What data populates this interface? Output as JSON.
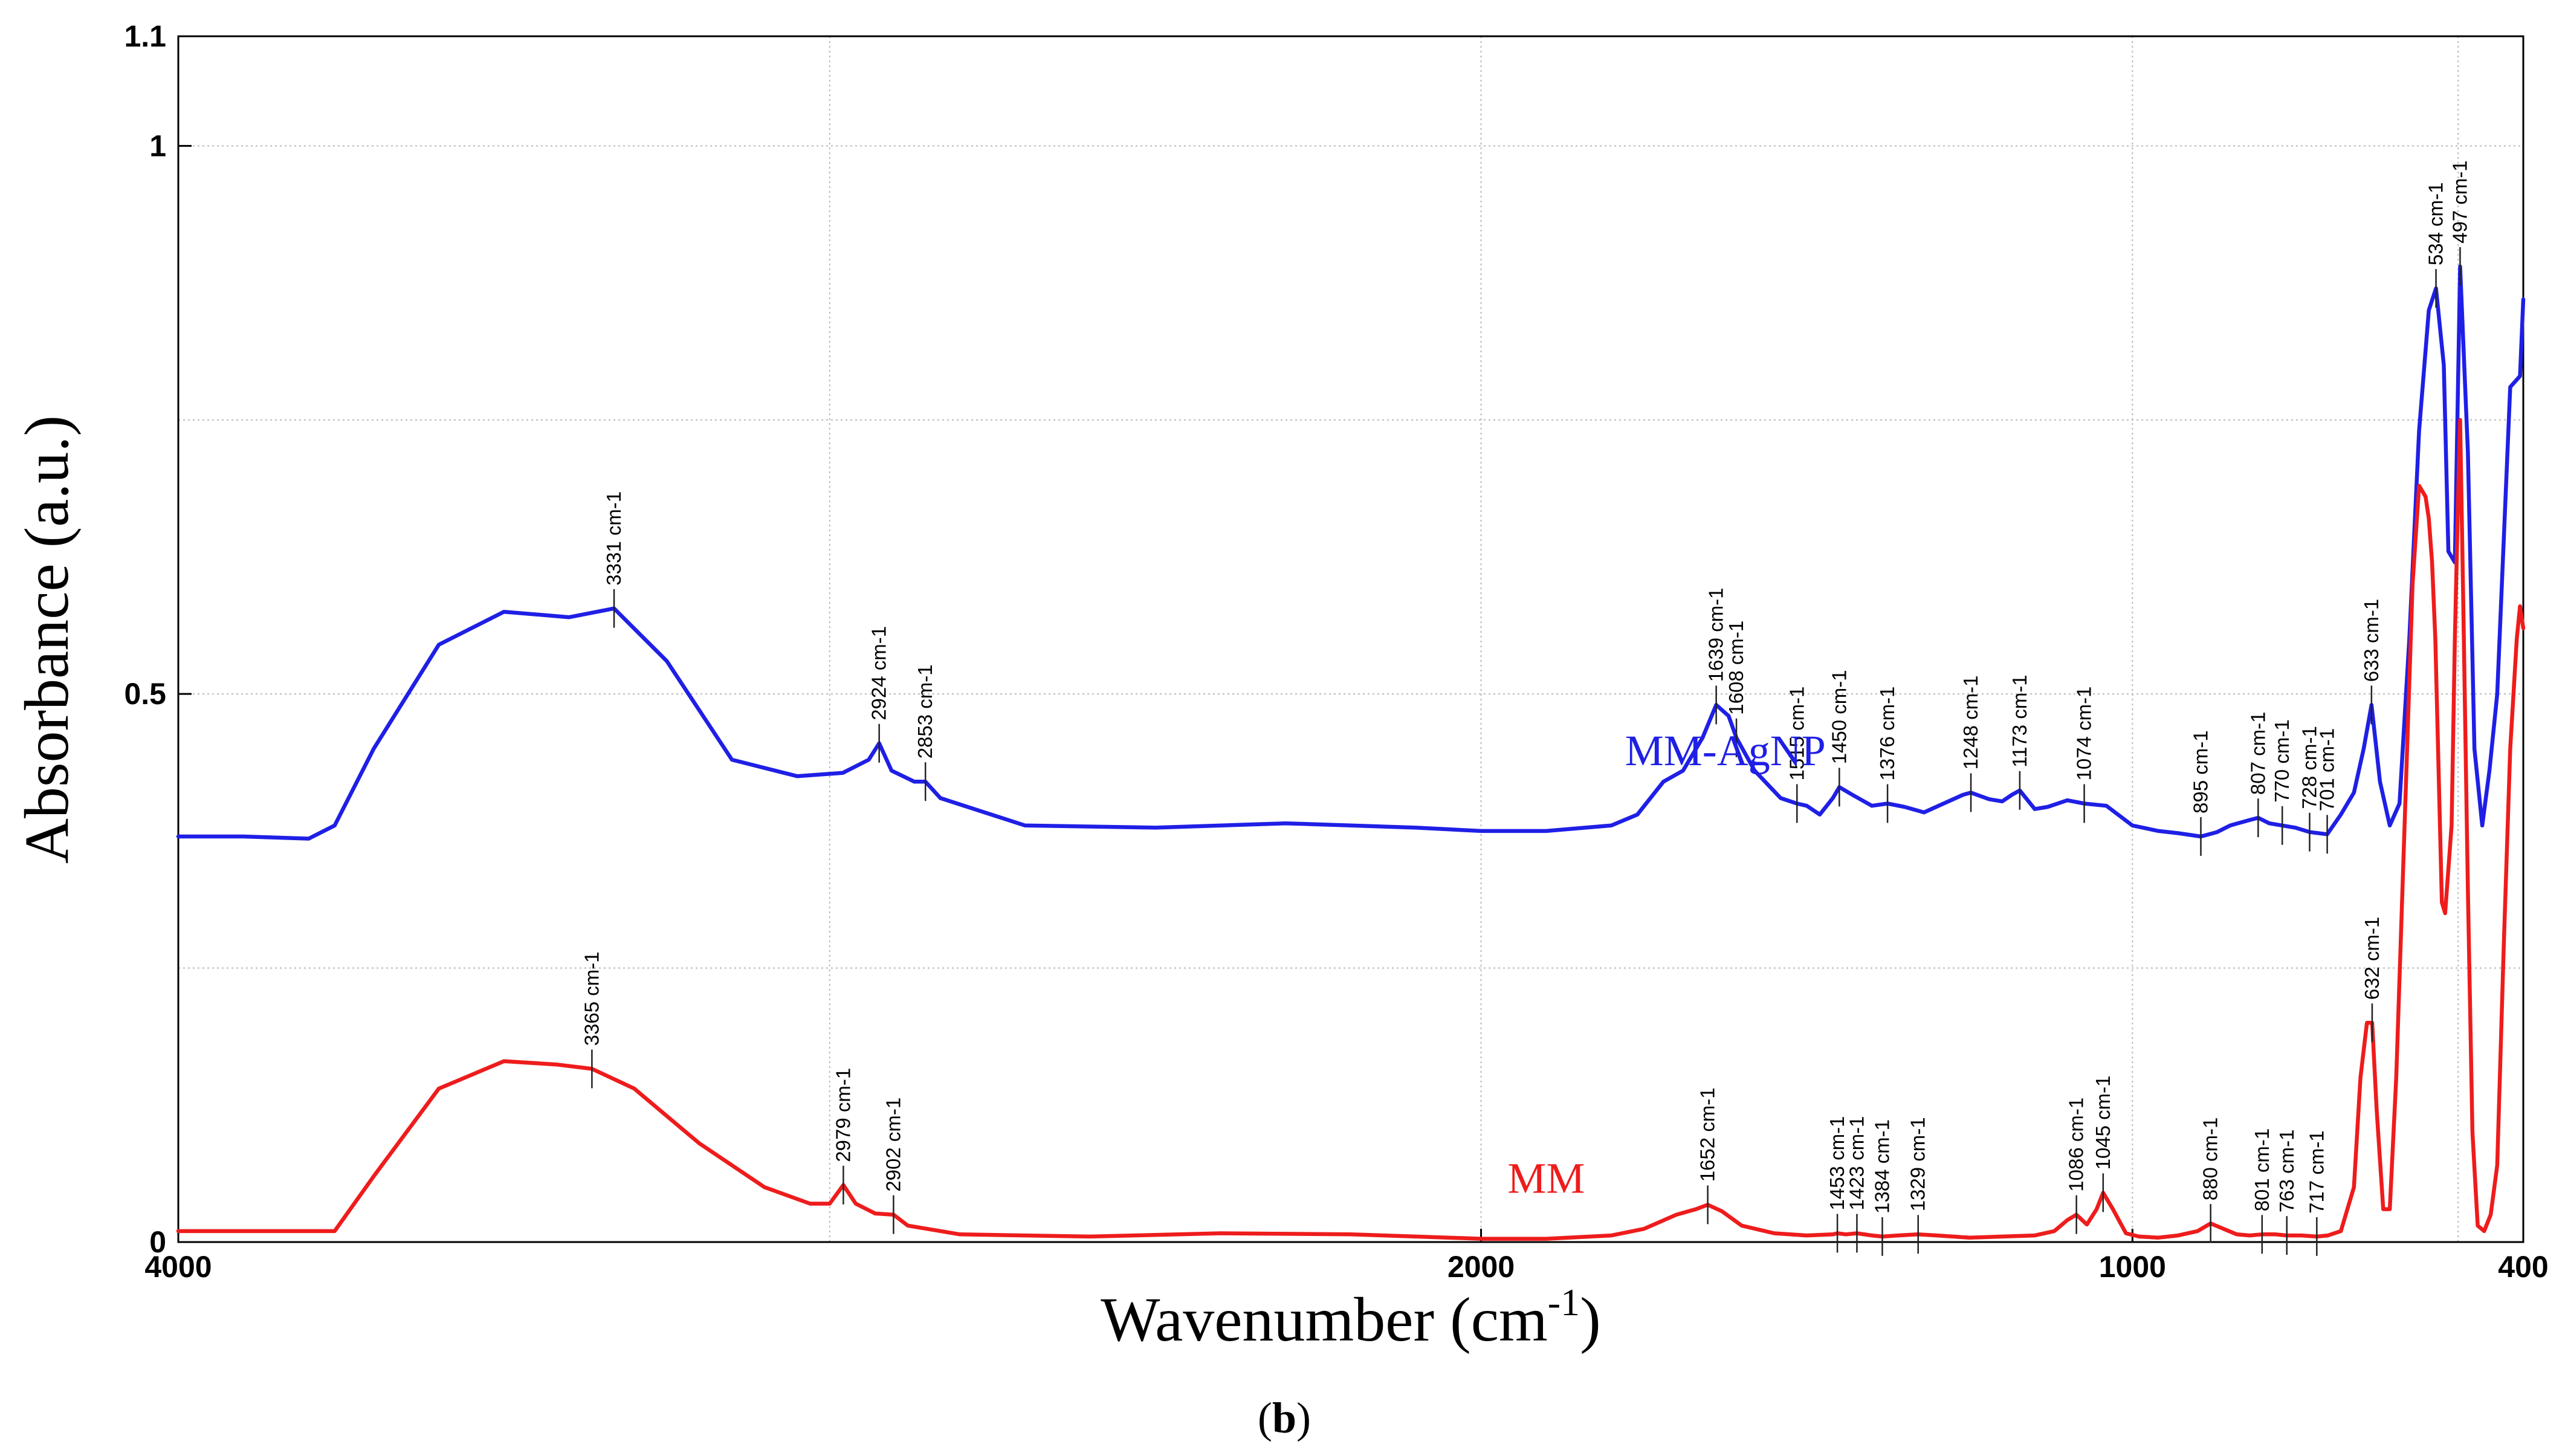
{
  "chart_data": {
    "type": "line",
    "title": "",
    "xlabel": "Wavenumber (cm",
    "xlabel_sup": "-1",
    "xlabel_close": ")",
    "ylabel": "Absorbance (a.u.)",
    "xlim": [
      4000,
      400
    ],
    "ylim": [
      0,
      1.1
    ],
    "x_ticks": [
      {
        "value": 4000,
        "label": "4000"
      },
      {
        "value": 2000,
        "label": "2000"
      },
      {
        "value": 1000,
        "label": "1000"
      },
      {
        "value": 400,
        "label": "400"
      }
    ],
    "y_ticks": [
      {
        "value": 0,
        "label": "0"
      },
      {
        "value": 0.5,
        "label": "0.5"
      },
      {
        "value": 1,
        "label": "1"
      },
      {
        "value": 1.1,
        "label": "1.1"
      }
    ],
    "grid_x": [
      3000,
      2000,
      1000,
      500
    ],
    "grid_y": [
      0.25,
      0.5,
      0.75,
      1.0
    ],
    "grid": true,
    "panel_label": {
      "open": "(",
      "letter": "b",
      "close": ")"
    },
    "series": [
      {
        "name": "MM-AgNP",
        "color": "#1f1fe6",
        "x": [
          4000,
          3900,
          3800,
          3760,
          3700,
          3600,
          3500,
          3400,
          3331,
          3250,
          3150,
          3050,
          2980,
          2940,
          2924,
          2905,
          2870,
          2853,
          2830,
          2700,
          2500,
          2300,
          2200,
          2100,
          2000,
          1900,
          1800,
          1760,
          1720,
          1690,
          1660,
          1639,
          1620,
          1608,
          1580,
          1540,
          1515,
          1500,
          1480,
          1460,
          1450,
          1430,
          1400,
          1376,
          1350,
          1320,
          1290,
          1260,
          1248,
          1220,
          1200,
          1185,
          1173,
          1150,
          1130,
          1100,
          1074,
          1040,
          1000,
          960,
          930,
          895,
          870,
          850,
          820,
          807,
          790,
          770,
          750,
          728,
          701,
          680,
          660,
          645,
          633,
          620,
          605,
          590,
          575,
          560,
          545,
          534,
          522,
          515,
          505,
          497,
          485,
          475,
          463,
          452,
          440,
          420,
          405,
          400
        ],
        "values": [
          0.37,
          0.37,
          0.368,
          0.38,
          0.45,
          0.545,
          0.575,
          0.57,
          0.578,
          0.53,
          0.44,
          0.425,
          0.428,
          0.44,
          0.455,
          0.43,
          0.42,
          0.42,
          0.405,
          0.38,
          0.378,
          0.382,
          0.38,
          0.378,
          0.375,
          0.375,
          0.38,
          0.39,
          0.42,
          0.43,
          0.46,
          0.49,
          0.48,
          0.46,
          0.43,
          0.405,
          0.4,
          0.398,
          0.39,
          0.405,
          0.415,
          0.408,
          0.398,
          0.4,
          0.397,
          0.392,
          0.4,
          0.408,
          0.41,
          0.404,
          0.402,
          0.408,
          0.412,
          0.395,
          0.397,
          0.403,
          0.4,
          0.398,
          0.38,
          0.375,
          0.373,
          0.37,
          0.374,
          0.38,
          0.385,
          0.387,
          0.382,
          0.38,
          0.378,
          0.374,
          0.372,
          0.39,
          0.41,
          0.45,
          0.49,
          0.42,
          0.38,
          0.4,
          0.55,
          0.74,
          0.85,
          0.87,
          0.8,
          0.63,
          0.62,
          0.89,
          0.72,
          0.45,
          0.38,
          0.43,
          0.5,
          0.78,
          0.79,
          0.86
        ]
      },
      {
        "name": "MM",
        "color": "#ee1c1c",
        "x": [
          4000,
          3900,
          3800,
          3760,
          3700,
          3600,
          3500,
          3420,
          3365,
          3300,
          3200,
          3100,
          3030,
          3000,
          2979,
          2960,
          2930,
          2902,
          2880,
          2800,
          2600,
          2400,
          2200,
          2100,
          2000,
          1900,
          1800,
          1750,
          1700,
          1670,
          1652,
          1630,
          1600,
          1550,
          1500,
          1460,
          1453,
          1440,
          1423,
          1400,
          1384,
          1360,
          1329,
          1300,
          1250,
          1200,
          1150,
          1120,
          1100,
          1086,
          1070,
          1055,
          1045,
          1030,
          1010,
          990,
          960,
          930,
          900,
          880,
          860,
          840,
          820,
          801,
          780,
          763,
          740,
          717,
          700,
          680,
          660,
          650,
          640,
          632,
          625,
          615,
          605,
          595,
          580,
          570,
          560,
          550,
          545,
          540,
          535,
          530,
          525,
          520,
          510,
          505,
          500,
          497,
          492,
          485,
          478,
          470,
          460,
          450,
          440,
          430,
          420,
          410,
          405,
          400
        ],
        "values": [
          0.01,
          0.01,
          0.01,
          0.01,
          0.06,
          0.14,
          0.165,
          0.162,
          0.158,
          0.14,
          0.09,
          0.05,
          0.035,
          0.035,
          0.052,
          0.035,
          0.026,
          0.025,
          0.015,
          0.007,
          0.005,
          0.008,
          0.007,
          0.005,
          0.003,
          0.003,
          0.006,
          0.012,
          0.025,
          0.03,
          0.034,
          0.028,
          0.015,
          0.008,
          0.006,
          0.007,
          0.008,
          0.007,
          0.008,
          0.006,
          0.005,
          0.006,
          0.007,
          0.006,
          0.004,
          0.005,
          0.006,
          0.01,
          0.02,
          0.025,
          0.016,
          0.03,
          0.045,
          0.03,
          0.008,
          0.005,
          0.004,
          0.006,
          0.01,
          0.017,
          0.012,
          0.007,
          0.006,
          0.007,
          0.007,
          0.006,
          0.006,
          0.005,
          0.006,
          0.01,
          0.05,
          0.15,
          0.2,
          0.2,
          0.12,
          0.03,
          0.03,
          0.15,
          0.42,
          0.6,
          0.69,
          0.68,
          0.66,
          0.62,
          0.55,
          0.43,
          0.31,
          0.3,
          0.38,
          0.55,
          0.68,
          0.75,
          0.58,
          0.32,
          0.1,
          0.015,
          0.01,
          0.025,
          0.07,
          0.27,
          0.45,
          0.55,
          0.58,
          0.56
        ]
      }
    ],
    "series_labels": [
      {
        "series": 0,
        "text": "MM-AgNP",
        "x": 1625,
        "y": 0.435
      },
      {
        "series": 1,
        "text": "MM",
        "x": 1900,
        "y": 0.045
      }
    ],
    "peak_annotations": [
      {
        "series": 0,
        "x": 3331,
        "y": 0.578,
        "label": "3331 cm-1"
      },
      {
        "series": 0,
        "x": 2924,
        "y": 0.455,
        "label": "2924 cm-1"
      },
      {
        "series": 0,
        "x": 2853,
        "y": 0.42,
        "label": "2853 cm-1"
      },
      {
        "series": 0,
        "x": 1639,
        "y": 0.49,
        "label": "1639 cm-1"
      },
      {
        "series": 0,
        "x": 1608,
        "y": 0.46,
        "label": "1608 cm-1"
      },
      {
        "series": 0,
        "x": 1515,
        "y": 0.4,
        "label": "1515 cm-1"
      },
      {
        "series": 0,
        "x": 1450,
        "y": 0.415,
        "label": "1450 cm-1"
      },
      {
        "series": 0,
        "x": 1376,
        "y": 0.4,
        "label": "1376 cm-1"
      },
      {
        "series": 0,
        "x": 1248,
        "y": 0.41,
        "label": "1248 cm-1"
      },
      {
        "series": 0,
        "x": 1173,
        "y": 0.412,
        "label": "1173 cm-1"
      },
      {
        "series": 0,
        "x": 1074,
        "y": 0.4,
        "label": "1074 cm-1"
      },
      {
        "series": 0,
        "x": 895,
        "y": 0.37,
        "label": "895 cm-1"
      },
      {
        "series": 0,
        "x": 807,
        "y": 0.387,
        "label": "807 cm-1"
      },
      {
        "series": 0,
        "x": 770,
        "y": 0.38,
        "label": "770 cm-1"
      },
      {
        "series": 0,
        "x": 728,
        "y": 0.374,
        "label": "728 cm-1"
      },
      {
        "series": 0,
        "x": 701,
        "y": 0.372,
        "label": "701 cm-1"
      },
      {
        "series": 0,
        "x": 633,
        "y": 0.49,
        "label": "633 cm-1"
      },
      {
        "series": 0,
        "x": 534,
        "y": 0.87,
        "label": "534 cm-1"
      },
      {
        "series": 0,
        "x": 497,
        "y": 0.89,
        "label": "497 cm-1"
      },
      {
        "series": 1,
        "x": 3365,
        "y": 0.158,
        "label": "3365 cm-1"
      },
      {
        "series": 1,
        "x": 2979,
        "y": 0.052,
        "label": "2979 cm-1"
      },
      {
        "series": 1,
        "x": 2902,
        "y": 0.025,
        "label": "2902 cm-1"
      },
      {
        "series": 1,
        "x": 1652,
        "y": 0.034,
        "label": "1652 cm-1"
      },
      {
        "series": 1,
        "x": 1453,
        "y": 0.008,
        "label": "1453 cm-1"
      },
      {
        "series": 1,
        "x": 1423,
        "y": 0.008,
        "label": "1423 cm-1"
      },
      {
        "series": 1,
        "x": 1384,
        "y": 0.005,
        "label": "1384 cm-1"
      },
      {
        "series": 1,
        "x": 1329,
        "y": 0.007,
        "label": "1329 cm-1"
      },
      {
        "series": 1,
        "x": 1086,
        "y": 0.025,
        "label": "1086 cm-1"
      },
      {
        "series": 1,
        "x": 1045,
        "y": 0.045,
        "label": "1045 cm-1"
      },
      {
        "series": 1,
        "x": 880,
        "y": 0.017,
        "label": "880 cm-1"
      },
      {
        "series": 1,
        "x": 801,
        "y": 0.007,
        "label": "801 cm-1"
      },
      {
        "series": 1,
        "x": 763,
        "y": 0.006,
        "label": "763 cm-1"
      },
      {
        "series": 1,
        "x": 717,
        "y": 0.005,
        "label": "717 cm-1"
      },
      {
        "series": 1,
        "x": 632,
        "y": 0.2,
        "label": "632 cm-1"
      }
    ]
  }
}
